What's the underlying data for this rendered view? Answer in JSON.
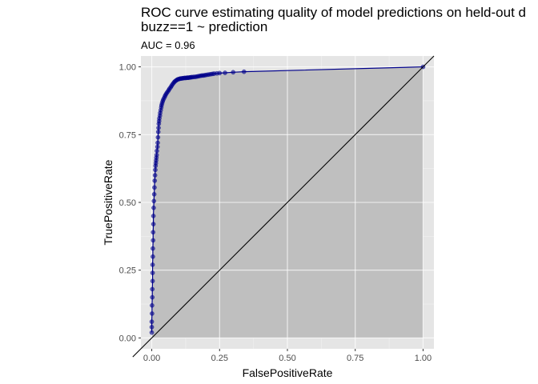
{
  "chart_data": {
    "type": "line",
    "title": "ROC curve estimating quality of model predictions on held-out d",
    "title_line2": "buzz==1 ~ prediction",
    "subtitle": "AUC = 0.96",
    "xlabel": "FalsePositiveRate",
    "ylabel": "TruePositiveRate",
    "xlim": [
      -0.04,
      1.04
    ],
    "ylim": [
      -0.04,
      1.04
    ],
    "x_ticks": [
      "0.00",
      "0.25",
      "0.50",
      "0.75",
      "1.00"
    ],
    "y_ticks": [
      "0.00",
      "0.25",
      "0.50",
      "0.75",
      "1.00"
    ],
    "grid": true,
    "colors": {
      "panel": "#e5e5e5",
      "area_fill": "#bfbfbf",
      "curve": "#00008b",
      "points": "#00008b",
      "diagonal": "#000000"
    },
    "reference_line": {
      "x": [
        0,
        1
      ],
      "y": [
        0,
        1
      ]
    },
    "series": [
      {
        "x": [
          0.0,
          0.0,
          0.0,
          0.001,
          0.001,
          0.002,
          0.002,
          0.003,
          0.003,
          0.003,
          0.004,
          0.004,
          0.005,
          0.005,
          0.006,
          0.006,
          0.007,
          0.008,
          0.009,
          0.01,
          0.011,
          0.012,
          0.013,
          0.014,
          0.015,
          0.016,
          0.017,
          0.018,
          0.019,
          0.021,
          0.022,
          0.023,
          0.024,
          0.025,
          0.026,
          0.027,
          0.028,
          0.03,
          0.031,
          0.033,
          0.035,
          0.036,
          0.038,
          0.04,
          0.042,
          0.045,
          0.048,
          0.05,
          0.053,
          0.056,
          0.06,
          0.063,
          0.066,
          0.07,
          0.073,
          0.076,
          0.08,
          0.083,
          0.086,
          0.09,
          0.093,
          0.096,
          0.1,
          0.103,
          0.106,
          0.11,
          0.113,
          0.116,
          0.12,
          0.123,
          0.126,
          0.13,
          0.133,
          0.136,
          0.14,
          0.143,
          0.146,
          0.15,
          0.155,
          0.16,
          0.165,
          0.17,
          0.175,
          0.18,
          0.185,
          0.19,
          0.195,
          0.2,
          0.206,
          0.212,
          0.218,
          0.224,
          0.23,
          0.24,
          0.25,
          0.27,
          0.3,
          0.34,
          1.0
        ],
        "y": [
          0.02,
          0.04,
          0.06,
          0.09,
          0.12,
          0.15,
          0.18,
          0.21,
          0.24,
          0.27,
          0.3,
          0.33,
          0.36,
          0.39,
          0.42,
          0.45,
          0.48,
          0.505,
          0.53,
          0.555,
          0.58,
          0.6,
          0.62,
          0.635,
          0.645,
          0.655,
          0.665,
          0.675,
          0.69,
          0.705,
          0.72,
          0.74,
          0.76,
          0.775,
          0.79,
          0.8,
          0.81,
          0.82,
          0.83,
          0.84,
          0.85,
          0.858,
          0.865,
          0.872,
          0.878,
          0.884,
          0.89,
          0.895,
          0.9,
          0.905,
          0.91,
          0.915,
          0.92,
          0.925,
          0.93,
          0.935,
          0.94,
          0.944,
          0.947,
          0.95,
          0.952,
          0.954,
          0.955,
          0.956,
          0.957,
          0.957,
          0.958,
          0.958,
          0.959,
          0.959,
          0.959,
          0.96,
          0.96,
          0.96,
          0.961,
          0.961,
          0.962,
          0.962,
          0.963,
          0.963,
          0.964,
          0.965,
          0.966,
          0.967,
          0.968,
          0.968,
          0.969,
          0.97,
          0.971,
          0.972,
          0.973,
          0.974,
          0.975,
          0.976,
          0.977,
          0.978,
          0.98,
          0.982,
          1.0
        ]
      }
    ]
  }
}
